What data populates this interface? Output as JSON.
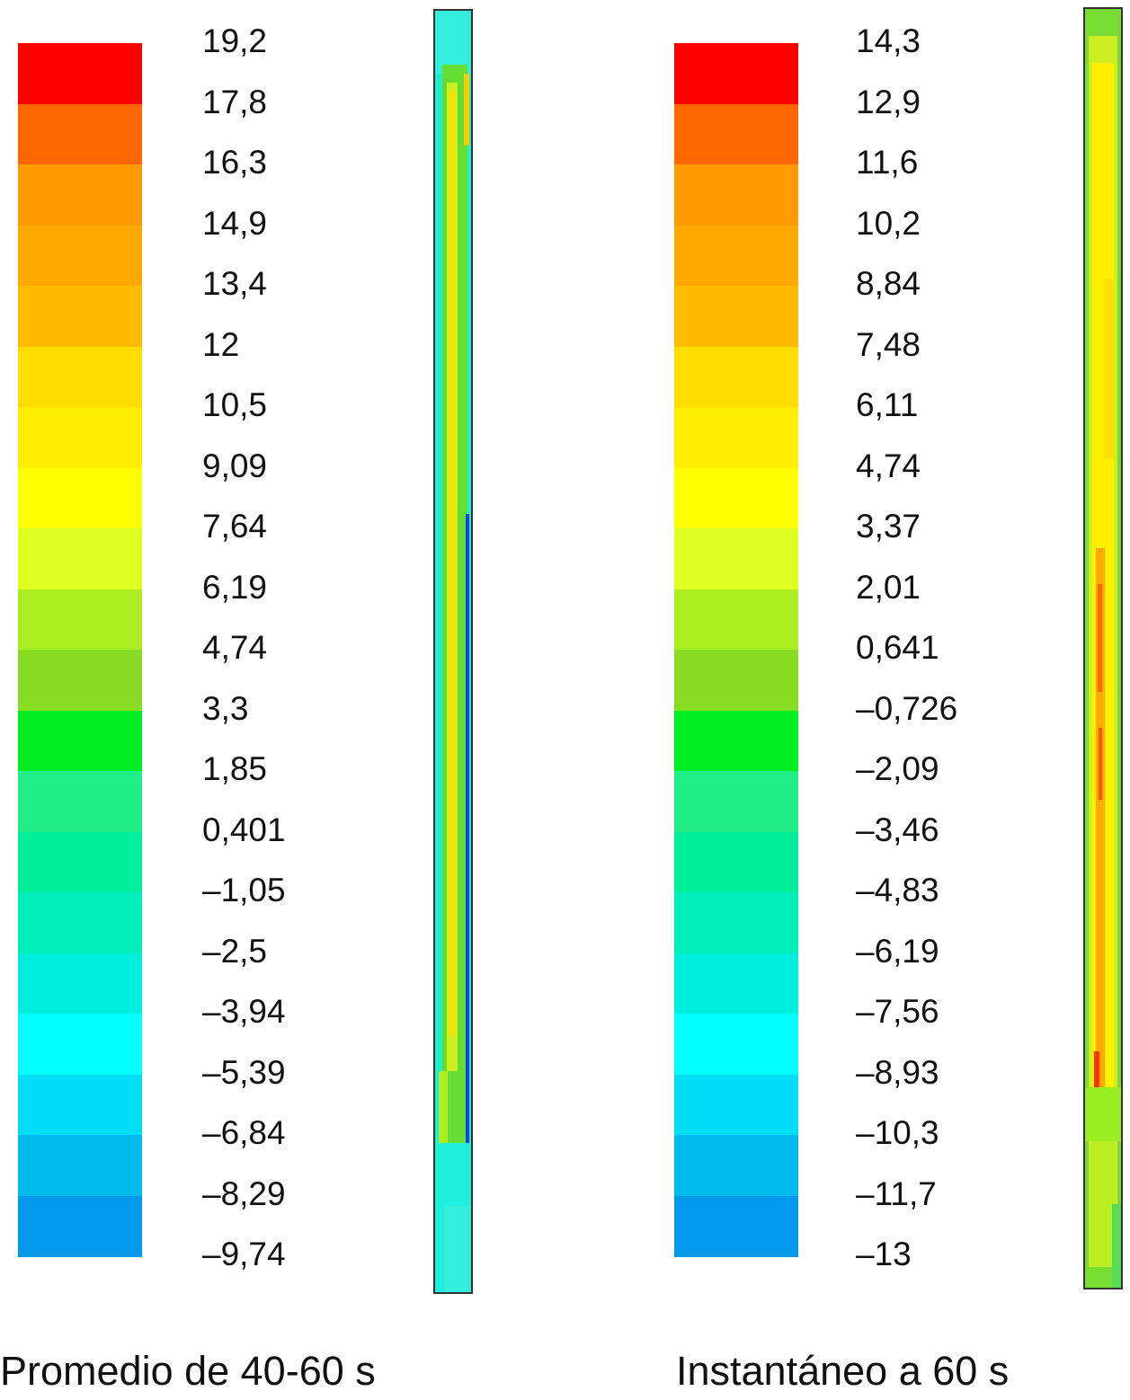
{
  "colors": [
    "#ff0000",
    "#ff6600",
    "#ff9900",
    "#ffaa00",
    "#ffbb00",
    "#ffdd00",
    "#ffee00",
    "#ffff00",
    "#ddff22",
    "#aaee22",
    "#88dd22",
    "#00ee22",
    "#22ee88",
    "#00ee99",
    "#00eebb",
    "#00eedd",
    "#00ffff",
    "#00ddf5",
    "#00bbee",
    "#0099ee",
    "#0066ee",
    "#0011dd"
  ],
  "panels": [
    {
      "caption": "Promedio de 40-60 s",
      "ticks": [
        "19,2",
        "17,8",
        "16,3",
        "14,9",
        "13,4",
        "12",
        "10,5",
        "9,09",
        "7,64",
        "6,19",
        "4,74",
        "3,3",
        "1,85",
        "0,401",
        "–1,05",
        "–2,5",
        "–3,94",
        "–5,39",
        "–6,84",
        "–8,29",
        "–9,74"
      ]
    },
    {
      "caption": "Instantáneo a 60 s",
      "ticks": [
        "14,3",
        "12,9",
        "11,6",
        "10,2",
        "8,84",
        "7,48",
        "6,11",
        "4,74",
        "3,37",
        "2,01",
        "0,641",
        "–0,726",
        "–2,09",
        "–3,46",
        "–4,83",
        "–6,19",
        "–7,56",
        "–8,93",
        "–10,3",
        "–11,7",
        "–13"
      ]
    }
  ]
}
